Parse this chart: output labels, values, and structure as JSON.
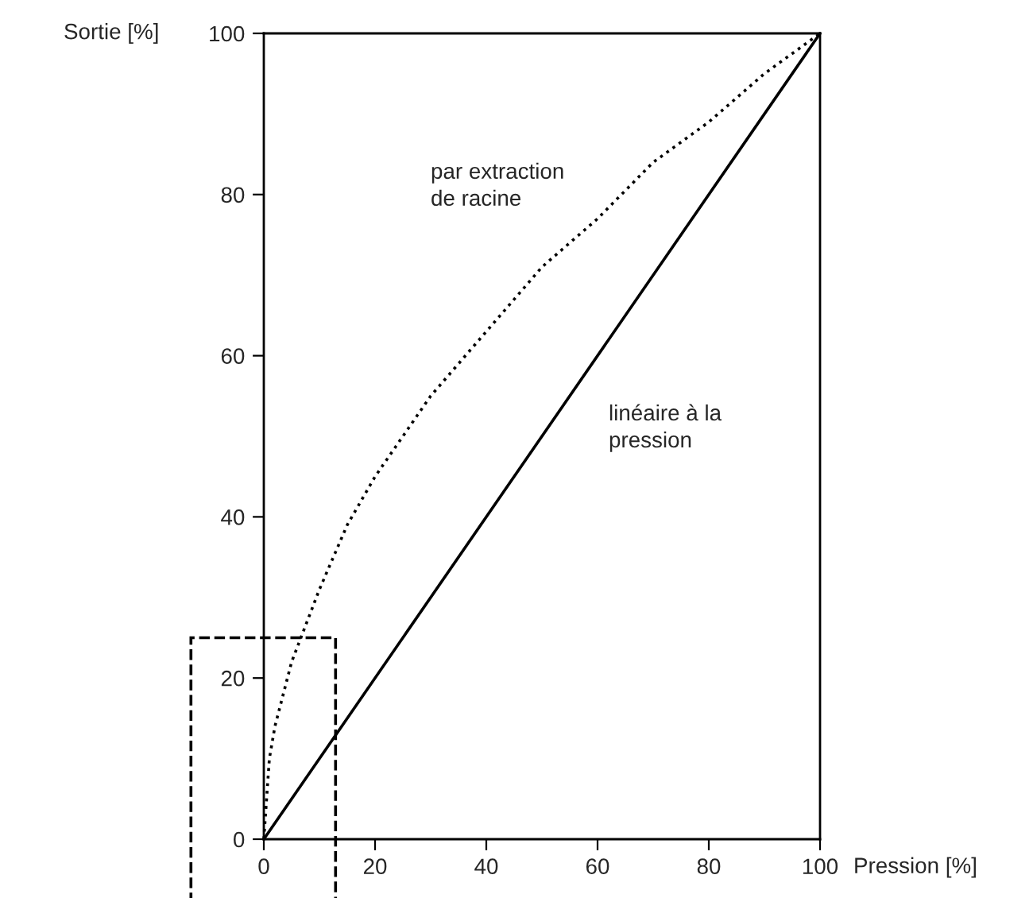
{
  "chart_data": {
    "type": "line",
    "xlabel": "Pression [%]",
    "ylabel": "Sortie [%]",
    "series": [
      {
        "color": "#000000",
        "line_style": "dotted",
        "x": [
          0,
          1,
          2,
          5,
          10,
          15,
          20,
          30,
          40,
          50,
          60,
          70,
          80,
          90,
          100
        ],
        "values": [
          0,
          10,
          14,
          22,
          31,
          39,
          45,
          55,
          63,
          71,
          77,
          84,
          89,
          95,
          100
        ]
      },
      {
        "color": "#000000",
        "line_style": "solid",
        "x": [
          0,
          100
        ],
        "values": [
          0,
          100
        ]
      }
    ],
    "annotations": [
      "par extraction\nde racine",
      "linéaire à la\npression"
    ],
    "xlim": [
      0,
      100
    ],
    "ylim": [
      0,
      100
    ],
    "xticks": [
      0,
      20,
      40,
      60,
      80,
      100
    ],
    "yticks": [
      0,
      20,
      40,
      60,
      80,
      100
    ],
    "grid": false,
    "legend": false,
    "marker": "none"
  }
}
